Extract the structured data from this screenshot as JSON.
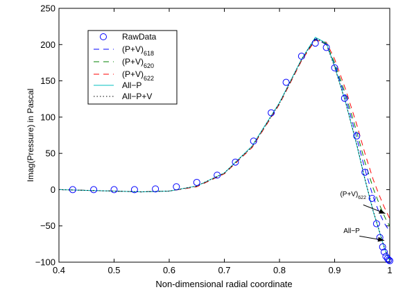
{
  "chart_data": {
    "type": "line",
    "title": "",
    "xlabel": "Non-dimensional radial coordinate",
    "ylabel": "Imag(Pressure) in Pascal",
    "xlim": [
      0.4,
      1.0
    ],
    "ylim": [
      -100,
      250
    ],
    "x_ticks": [
      0.4,
      0.5,
      0.6,
      0.7,
      0.8,
      0.9,
      1.0
    ],
    "x_tick_labels": [
      "0.4",
      "0.5",
      "0.6",
      "0.7",
      "0.8",
      "0.9",
      "1"
    ],
    "y_ticks": [
      -100,
      -50,
      0,
      50,
      100,
      150,
      200,
      250
    ],
    "y_tick_labels": [
      "−100",
      "−50",
      "0",
      "50",
      "100",
      "150",
      "200",
      "250"
    ],
    "grid": false,
    "legend_position": "top-left",
    "legend": [
      {
        "label": "RawData",
        "sub": "",
        "color": "#0000ff",
        "style": "circle"
      },
      {
        "label": "(P+V)",
        "sub": "618",
        "color": "#0000ff",
        "style": "dashed"
      },
      {
        "label": "(P+V)",
        "sub": "620",
        "color": "#008000",
        "style": "dashed"
      },
      {
        "label": "(P+V)",
        "sub": "622",
        "color": "#ff0000",
        "style": "dashed"
      },
      {
        "label": "All−P",
        "sub": "",
        "color": "#00bfbf",
        "style": "solid"
      },
      {
        "label": "All−P+V",
        "sub": "",
        "color": "#000000",
        "style": "dotted"
      }
    ],
    "raw_data": {
      "x": [
        0.425,
        0.463,
        0.5,
        0.537,
        0.575,
        0.613,
        0.65,
        0.687,
        0.72,
        0.753,
        0.785,
        0.812,
        0.84,
        0.865,
        0.885,
        0.9,
        0.918,
        0.94,
        0.955,
        0.968,
        0.976,
        0.982,
        0.987,
        0.99,
        0.993,
        0.996,
        0.998,
        1.0
      ],
      "y": [
        0,
        0,
        0,
        0,
        1,
        4,
        10,
        20,
        38,
        67,
        106,
        148,
        184,
        202,
        196,
        168,
        126,
        74,
        24,
        -12,
        -47,
        -66,
        -79,
        -86,
        -92,
        -95,
        -97,
        -98
      ]
    },
    "series": [
      {
        "key": "pv618",
        "color": "#0000ff",
        "dash": "8,6",
        "x": [
          0.4,
          0.45,
          0.5,
          0.55,
          0.6,
          0.65,
          0.7,
          0.75,
          0.8,
          0.84,
          0.865,
          0.885,
          0.9,
          0.92,
          0.94,
          0.955,
          0.97,
          0.98,
          0.99,
          0.995,
          1.0
        ],
        "y": [
          0,
          -1,
          -2,
          -3,
          -2,
          4,
          22,
          58,
          118,
          178,
          208,
          200,
          172,
          126,
          72,
          28,
          -10,
          -30,
          -46,
          -52,
          -57
        ]
      },
      {
        "key": "pv620",
        "color": "#008000",
        "dash": "8,6",
        "x": [
          0.4,
          0.45,
          0.5,
          0.55,
          0.6,
          0.65,
          0.7,
          0.75,
          0.8,
          0.84,
          0.865,
          0.885,
          0.9,
          0.92,
          0.94,
          0.955,
          0.97,
          0.98,
          0.99,
          0.995,
          1.0
        ],
        "y": [
          0,
          -1,
          -2,
          -3,
          -2,
          4,
          22,
          58,
          118,
          178,
          207,
          201,
          175,
          131,
          80,
          38,
          2,
          -18,
          -36,
          -44,
          -50
        ]
      },
      {
        "key": "pv622",
        "color": "#ff0000",
        "dash": "8,6",
        "x": [
          0.4,
          0.45,
          0.5,
          0.55,
          0.6,
          0.65,
          0.7,
          0.75,
          0.8,
          0.84,
          0.865,
          0.885,
          0.9,
          0.92,
          0.94,
          0.955,
          0.97,
          0.98,
          0.99,
          0.995,
          1.0
        ],
        "y": [
          0,
          -1,
          -2,
          -3,
          -2,
          4,
          22,
          58,
          118,
          178,
          206,
          203,
          180,
          138,
          90,
          50,
          14,
          -6,
          -24,
          -32,
          -40
        ]
      },
      {
        "key": "allp",
        "color": "#00bfbf",
        "dash": "",
        "x": [
          0.4,
          0.45,
          0.5,
          0.55,
          0.6,
          0.65,
          0.7,
          0.75,
          0.8,
          0.84,
          0.865,
          0.885,
          0.9,
          0.92,
          0.94,
          0.955,
          0.97,
          0.98,
          0.99,
          0.995,
          1.0
        ],
        "y": [
          0,
          -1,
          -2,
          -3,
          -2,
          5,
          23,
          60,
          120,
          180,
          210,
          202,
          170,
          120,
          62,
          14,
          -30,
          -55,
          -80,
          -90,
          -98
        ]
      },
      {
        "key": "allpv",
        "color": "#000000",
        "dash": "1.5,3",
        "x": [
          0.4,
          0.45,
          0.5,
          0.55,
          0.6,
          0.65,
          0.7,
          0.75,
          0.8,
          0.84,
          0.865,
          0.885,
          0.9,
          0.92,
          0.94,
          0.955,
          0.97,
          0.98,
          0.99,
          0.995,
          1.0
        ],
        "y": [
          0,
          -1,
          -2,
          -3,
          -2,
          5,
          23,
          59,
          119,
          179,
          209,
          201,
          169,
          120,
          63,
          15,
          -29,
          -54,
          -79,
          -89,
          -97
        ]
      }
    ],
    "annotations": [
      {
        "key": "pv622",
        "text": "(P+V)",
        "sub": "622",
        "text_x": 0.91,
        "text_y": -9,
        "arrow_from": [
          0.952,
          -21
        ],
        "arrow_to": [
          0.992,
          -33
        ]
      },
      {
        "key": "allp",
        "text": "All−P",
        "sub": "",
        "text_x": 0.916,
        "text_y": -60,
        "arrow_from": [
          0.945,
          -64
        ],
        "arrow_to": [
          0.99,
          -70
        ]
      }
    ]
  }
}
